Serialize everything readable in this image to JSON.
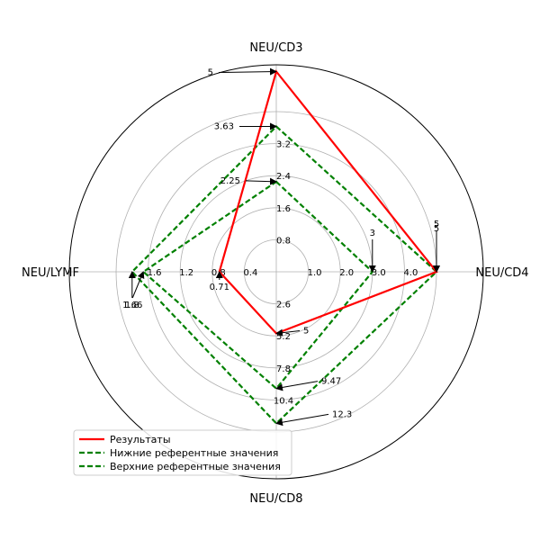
{
  "chart_data": {
    "type": "radar",
    "title": "",
    "axes": [
      {
        "name": "NEU/CD3",
        "ticks": [
          "0.8",
          "1.6",
          "2.4",
          "3.2"
        ]
      },
      {
        "name": "NEU/CD4",
        "ticks": [
          "1.0",
          "2.0",
          "3.0",
          "4.0"
        ]
      },
      {
        "name": "NEU/CD8",
        "ticks": [
          "2.6",
          "5.2",
          "7.8",
          "10.4"
        ]
      },
      {
        "name": "NEU/LYMF",
        "ticks": [
          "0.4",
          "0.8",
          "1.2",
          "1.6"
        ]
      }
    ],
    "axis_max": [
      4.0,
      5.0,
      13.0,
      2.0
    ],
    "series": [
      {
        "name": "Результаты",
        "color": "#ff0000",
        "style": "solid",
        "values": [
          5,
          5,
          5,
          0.71
        ],
        "labels": [
          "5",
          "5",
          "5",
          "0.71"
        ]
      },
      {
        "name": "Нижние референтные значения",
        "color": "#008000",
        "style": "dashed",
        "values": [
          2.25,
          3,
          9.47,
          1.66
        ],
        "labels": [
          "2.25",
          "3",
          "9.47",
          "1.66"
        ]
      },
      {
        "name": "Верхние референтные значения",
        "color": "#008000",
        "style": "dashed",
        "values": [
          3.63,
          5,
          12.3,
          1.8
        ],
        "labels": [
          "3.63",
          "5",
          "12.3",
          "1.8"
        ]
      }
    ],
    "legend_position": "lower-left",
    "grid": true
  }
}
